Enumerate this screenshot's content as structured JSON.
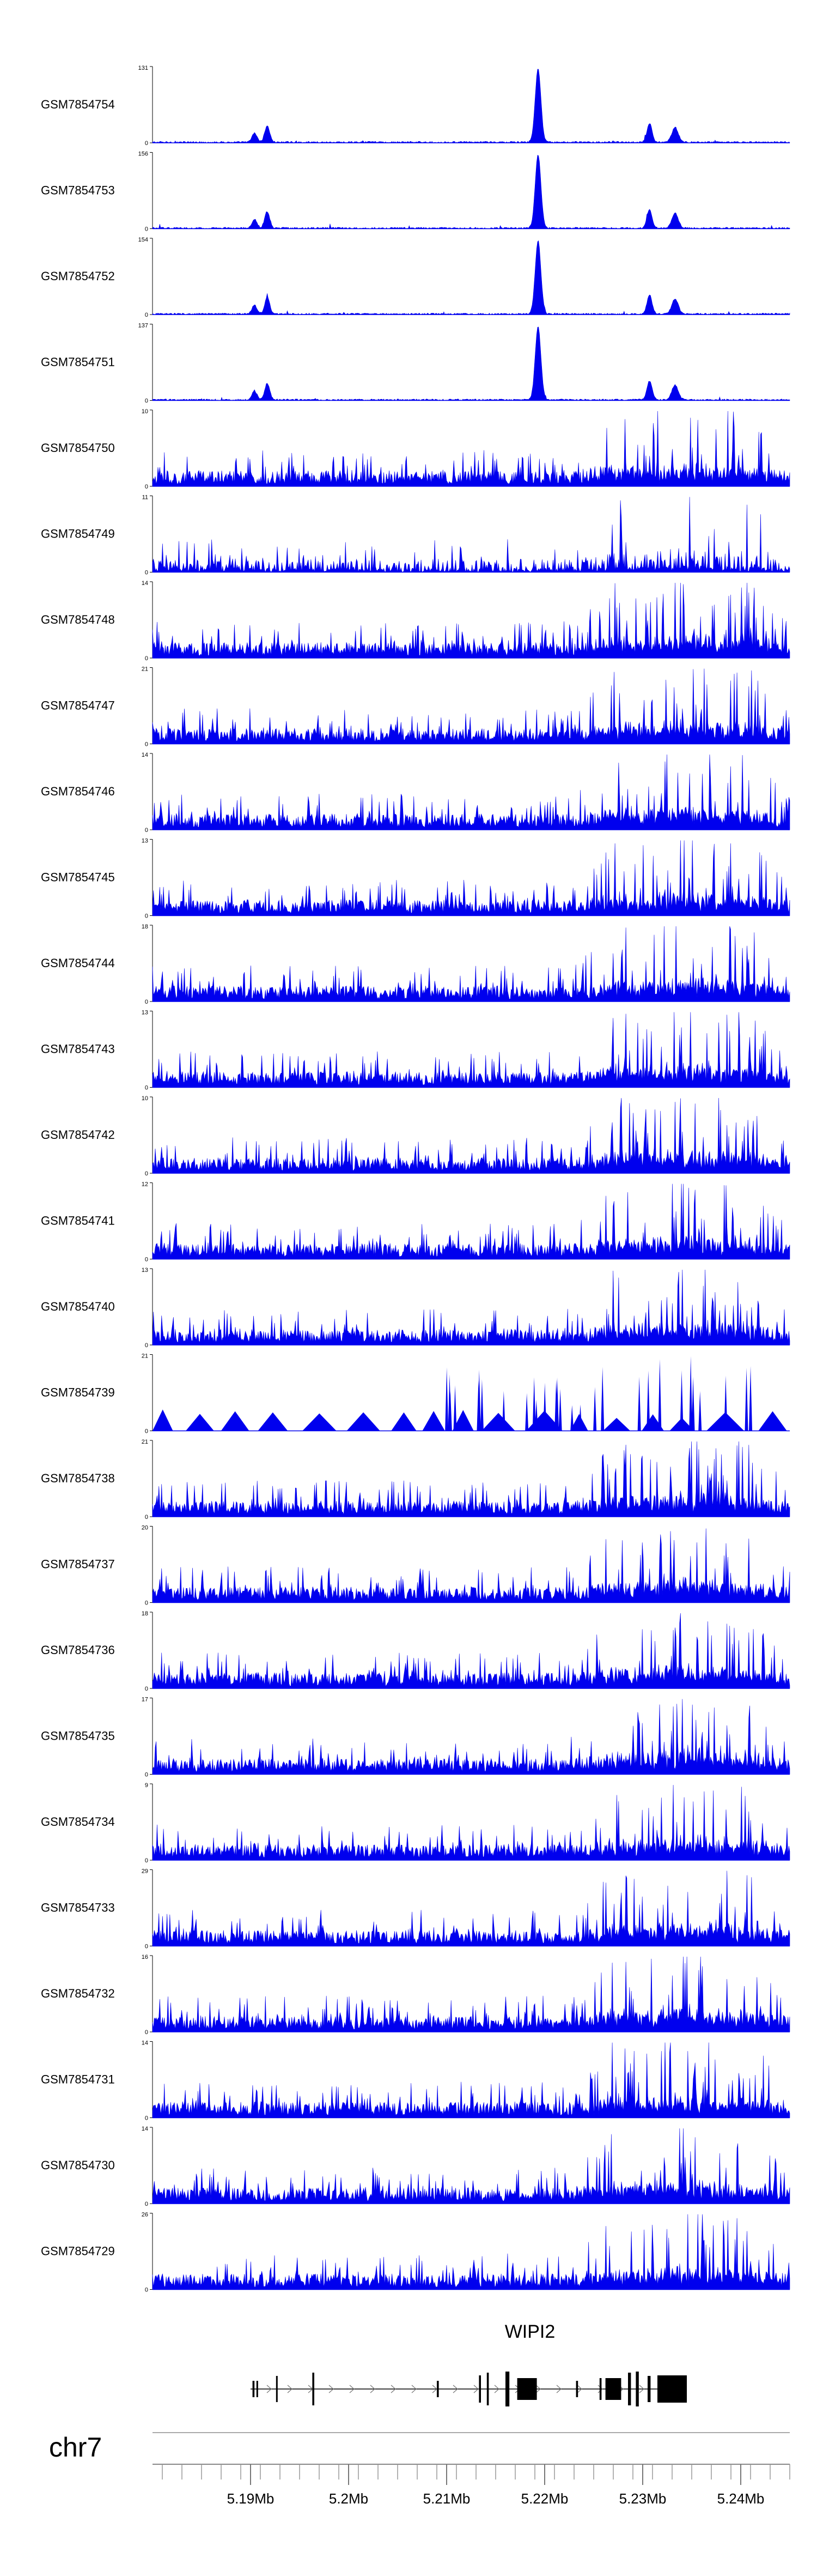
{
  "chart_data": {
    "type": "area",
    "chromosome": "chr7",
    "xlim_mb": [
      5.18,
      5.245
    ],
    "x_ticks": [
      "5.19Mb",
      "5.2Mb",
      "5.21Mb",
      "5.22Mb",
      "5.23Mb",
      "5.24Mb"
    ],
    "x_tick_values_mb": [
      5.19,
      5.2,
      5.21,
      5.22,
      5.23,
      5.24
    ],
    "grid": false,
    "track_color": "#0000ee",
    "gene": {
      "name": "WIPI2",
      "start_mb": 5.19,
      "end_mb": 5.234,
      "strand": "+"
    },
    "tracks": [
      {
        "name": "GSM7854754",
        "ymax": "131",
        "profile": "peak"
      },
      {
        "name": "GSM7854753",
        "ymax": "156",
        "profile": "peak"
      },
      {
        "name": "GSM7854752",
        "ymax": "154",
        "profile": "peak"
      },
      {
        "name": "GSM7854751",
        "ymax": "137",
        "profile": "peak"
      },
      {
        "name": "GSM7854750",
        "ymax": "10",
        "profile": "noise"
      },
      {
        "name": "GSM7854749",
        "ymax": "11",
        "profile": "sparse"
      },
      {
        "name": "GSM7854748",
        "ymax": "14",
        "profile": "noise"
      },
      {
        "name": "GSM7854747",
        "ymax": "21",
        "profile": "noise"
      },
      {
        "name": "GSM7854746",
        "ymax": "14",
        "profile": "noise"
      },
      {
        "name": "GSM7854745",
        "ymax": "13",
        "profile": "noise"
      },
      {
        "name": "GSM7854744",
        "ymax": "18",
        "profile": "noise"
      },
      {
        "name": "GSM7854743",
        "ymax": "13",
        "profile": "noise"
      },
      {
        "name": "GSM7854742",
        "ymax": "10",
        "profile": "noise"
      },
      {
        "name": "GSM7854741",
        "ymax": "12",
        "profile": "noise"
      },
      {
        "name": "GSM7854740",
        "ymax": "13",
        "profile": "noise"
      },
      {
        "name": "GSM7854739",
        "ymax": "21",
        "profile": "triangles"
      },
      {
        "name": "GSM7854738",
        "ymax": "21",
        "profile": "noise"
      },
      {
        "name": "GSM7854737",
        "ymax": "20",
        "profile": "noise"
      },
      {
        "name": "GSM7854736",
        "ymax": "18",
        "profile": "noise"
      },
      {
        "name": "GSM7854735",
        "ymax": "17",
        "profile": "noise"
      },
      {
        "name": "GSM7854734",
        "ymax": "9",
        "profile": "noise"
      },
      {
        "name": "GSM7854733",
        "ymax": "29",
        "profile": "noise"
      },
      {
        "name": "GSM7854732",
        "ymax": "16",
        "profile": "noise"
      },
      {
        "name": "GSM7854731",
        "ymax": "14",
        "profile": "noise"
      },
      {
        "name": "GSM7854730",
        "ymax": "14",
        "profile": "noise"
      },
      {
        "name": "GSM7854729",
        "ymax": "26",
        "profile": "noise"
      }
    ]
  }
}
